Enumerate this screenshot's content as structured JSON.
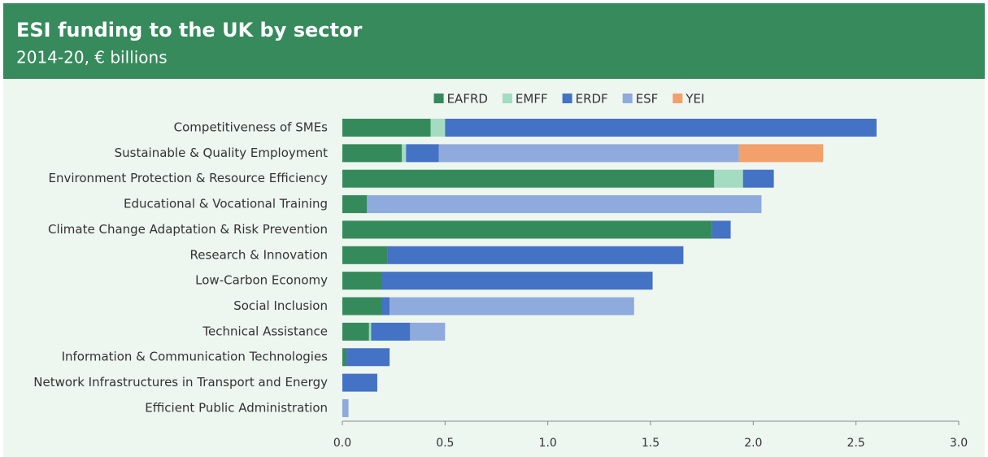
{
  "chart_data": {
    "type": "stacked-bar-horizontal",
    "title": "ESI funding to the UK by sector",
    "subtitle": "2014-20, € billions",
    "categories": [
      "Competitiveness of SMEs",
      "Sustainable & Quality Employment",
      "Environment Protection & Resource Efficiency",
      "Educational & Vocational Training",
      "Climate Change Adaptation & Risk Prevention",
      "Research & Innovation",
      "Low-Carbon Economy",
      "Social Inclusion",
      "Technical Assistance",
      "Information & Communication Technologies",
      "Network Infrastructures in Transport and Energy",
      "Efficient Public Administration"
    ],
    "series": [
      {
        "name": "EAFRD",
        "color": "#358a5b",
        "values": [
          0.43,
          0.29,
          1.81,
          0.12,
          1.8,
          0.22,
          0.19,
          0.19,
          0.13,
          0.02,
          0,
          0
        ]
      },
      {
        "name": "EMFF",
        "color": "#a3dcc0",
        "values": [
          0.07,
          0.02,
          0.14,
          0,
          0,
          0,
          0,
          0,
          0.01,
          0,
          0,
          0
        ]
      },
      {
        "name": "ERDF",
        "color": "#4472c4",
        "values": [
          2.1,
          0.16,
          0.15,
          0,
          0.09,
          1.44,
          1.32,
          0.04,
          0.19,
          0.21,
          0.17,
          0
        ]
      },
      {
        "name": "ESF",
        "color": "#8faadc",
        "values": [
          0,
          1.46,
          0,
          1.92,
          0,
          0,
          0,
          1.19,
          0.17,
          0,
          0,
          0.03
        ]
      },
      {
        "name": "YEI",
        "color": "#f4a06a",
        "values": [
          0,
          0.41,
          0,
          0,
          0,
          0,
          0,
          0,
          0,
          0,
          0,
          0
        ]
      }
    ],
    "xlim": [
      0,
      3
    ],
    "xticks": [
      {
        "value": 0,
        "label": "0.0"
      },
      0.5,
      {
        "value": 1,
        "label": "1.0"
      },
      1.5,
      {
        "value": 2,
        "label": "2.0"
      },
      2.5,
      {
        "value": 3,
        "label": "3.0"
      }
    ],
    "legend": "top"
  }
}
